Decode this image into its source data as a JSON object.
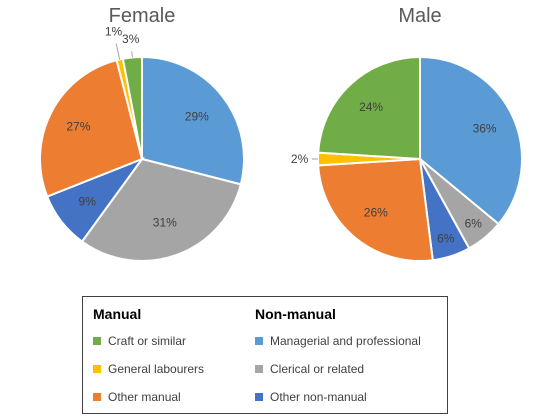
{
  "chart_data": [
    {
      "type": "pie",
      "title": "Female",
      "slices": [
        {
          "label": "Managerial and professional",
          "value": 29,
          "color": "#5B9BD5"
        },
        {
          "label": "Clerical or related",
          "value": 31,
          "color": "#A5A5A5"
        },
        {
          "label": "Other non-manual",
          "value": 9,
          "color": "#4472C4"
        },
        {
          "label": "Other manual",
          "value": 27,
          "color": "#ED7D31"
        },
        {
          "label": "General labourers",
          "value": 1,
          "color": "#FFC000"
        },
        {
          "label": "Craft or similar",
          "value": 3,
          "color": "#70AD47"
        }
      ],
      "data_labels": [
        "29%",
        "31%",
        "9%",
        "27%",
        "1%",
        "3%"
      ]
    },
    {
      "type": "pie",
      "title": "Male",
      "slices": [
        {
          "label": "Managerial and professional",
          "value": 36,
          "color": "#5B9BD5"
        },
        {
          "label": "Clerical or related",
          "value": 6,
          "color": "#A5A5A5"
        },
        {
          "label": "Other non-manual",
          "value": 6,
          "color": "#4472C4"
        },
        {
          "label": "Other manual",
          "value": 26,
          "color": "#ED7D31"
        },
        {
          "label": "General labourers",
          "value": 2,
          "color": "#FFC000"
        },
        {
          "label": "Craft or similar",
          "value": 24,
          "color": "#70AD47"
        }
      ],
      "data_labels": [
        "36%",
        "6%",
        "6%",
        "26%",
        "2%",
        "24%"
      ]
    }
  ],
  "legend": {
    "manual_heading": "Manual",
    "nonmanual_heading": "Non-manual",
    "manual_items": [
      {
        "label": "Craft or similar",
        "color": "#70AD47"
      },
      {
        "label": "General labourers",
        "color": "#FFC000"
      },
      {
        "label": "Other manual",
        "color": "#ED7D31"
      }
    ],
    "nonmanual_items": [
      {
        "label": "Managerial and professional",
        "color": "#5B9BD5"
      },
      {
        "label": "Clerical or related",
        "color": "#A5A5A5"
      },
      {
        "label": "Other non-manual",
        "color": "#4472C4"
      }
    ]
  }
}
